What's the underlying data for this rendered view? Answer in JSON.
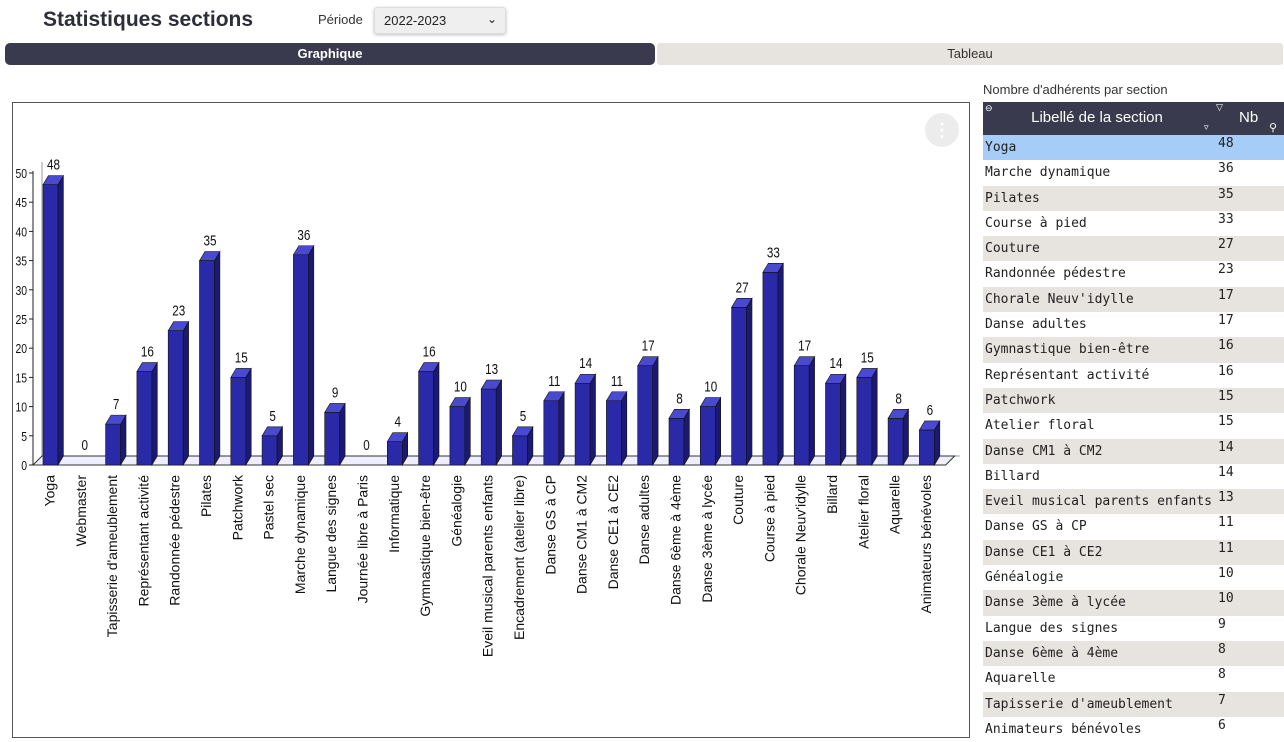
{
  "header": {
    "title": "Statistiques sections",
    "periode_label": "Période",
    "periode_value": "2022-2023"
  },
  "tabs": [
    {
      "label": "Graphique",
      "active": true
    },
    {
      "label": "Tableau",
      "active": false
    }
  ],
  "table": {
    "caption": "Nombre d'adhérents par section",
    "col_label": "Libellé de la section",
    "col_nb": "Nb",
    "rows": [
      {
        "label": "Yoga",
        "nb": "48"
      },
      {
        "label": "Marche dynamique",
        "nb": "36"
      },
      {
        "label": "Pilates",
        "nb": "35"
      },
      {
        "label": "Course à pied",
        "nb": "33"
      },
      {
        "label": "Couture",
        "nb": "27"
      },
      {
        "label": "Randonnée pédestre",
        "nb": "23"
      },
      {
        "label": "Chorale Neuv'idylle",
        "nb": "17"
      },
      {
        "label": "Danse adultes",
        "nb": "17"
      },
      {
        "label": "Gymnastique bien-être",
        "nb": "16"
      },
      {
        "label": "Représentant activité",
        "nb": "16"
      },
      {
        "label": "Patchwork",
        "nb": "15"
      },
      {
        "label": "Atelier floral",
        "nb": "15"
      },
      {
        "label": "Danse CM1 à CM2",
        "nb": "14"
      },
      {
        "label": "Billard",
        "nb": "14"
      },
      {
        "label": "Eveil musical parents enfants",
        "nb": "13"
      },
      {
        "label": "Danse GS à CP",
        "nb": "11"
      },
      {
        "label": "Danse CE1 à CE2",
        "nb": "11"
      },
      {
        "label": "Généalogie",
        "nb": "10"
      },
      {
        "label": "Danse 3ème à lycée",
        "nb": "10"
      },
      {
        "label": "Langue des signes",
        "nb": "9"
      },
      {
        "label": "Danse 6ème à 4ème",
        "nb": "8"
      },
      {
        "label": "Aquarelle",
        "nb": "8"
      },
      {
        "label": "Tapisserie d'ameublement",
        "nb": "7"
      },
      {
        "label": "Animateurs bénévoles",
        "nb": "6"
      }
    ]
  },
  "colors": {
    "bar_front": "#2a2aa8",
    "bar_side": "#1a1a70",
    "bar_top": "#4a4ad0",
    "header_dark": "#3a3a4e",
    "row_highlight": "#a6cdf7",
    "row_alt": "#e7e3df"
  },
  "icons": {
    "menu": "vertical-ellipsis-icon",
    "sort": "sort-arrow-icon",
    "filter": "filter-icon",
    "search": "magnifier-icon"
  },
  "chart_data": {
    "type": "bar",
    "categories": [
      "Yoga",
      "Webmaster",
      "Tapisserie d'ameublement",
      "Représentant activité",
      "Randonnée pédestre",
      "Pilates",
      "Patchwork",
      "Pastel sec",
      "Marche dynamique",
      "Langue des signes",
      "Journée libre à Paris",
      "Informatique",
      "Gymnastique bien-être",
      "Généalogie",
      "Eveil musical parents enfants",
      "Encadrement (atelier libre)",
      "Danse GS à CP",
      "Danse CM1 à CM2",
      "Danse CE1 à CE2",
      "Danse adultes",
      "Danse 6ème à 4ème",
      "Danse 3ème à lycée",
      "Couture",
      "Course à pied",
      "Chorale Neuv'idylle",
      "Billard",
      "Atelier floral",
      "Aquarelle",
      "Animateurs bénévoles"
    ],
    "values": [
      48,
      0,
      7,
      16,
      23,
      35,
      15,
      5,
      36,
      9,
      0,
      4,
      16,
      10,
      13,
      5,
      11,
      14,
      11,
      17,
      8,
      10,
      27,
      33,
      17,
      14,
      15,
      8,
      6
    ],
    "ylim": [
      0,
      50
    ],
    "yticks": [
      0,
      5,
      10,
      15,
      20,
      25,
      30,
      35,
      40,
      45,
      50
    ],
    "grid": false
  }
}
